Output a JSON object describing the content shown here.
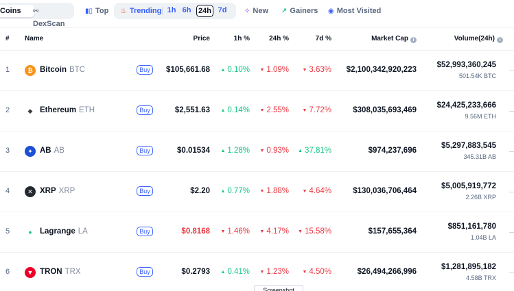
{
  "topbar": {
    "coins_label": "Coins",
    "dexscan_label": "DexScan",
    "top_label": "Top",
    "trending_label": "Trending",
    "timeframes": [
      "1h",
      "6h",
      "24h",
      "7d"
    ],
    "active_timeframe": "24h",
    "new_label": "New",
    "gainers_label": "Gainers",
    "most_visited_label": "Most Visited"
  },
  "table": {
    "headers": {
      "rank": "#",
      "name": "Name",
      "price": "Price",
      "h1": "1h %",
      "h24": "24h %",
      "d7": "7d %",
      "market_cap": "Market Cap",
      "volume": "Volume(24h)"
    },
    "buy_label": "Buy",
    "rows": [
      {
        "rank": "1",
        "name": "Bitcoin",
        "symbol": "BTC",
        "price": "$105,661.68",
        "h1": "0.10%",
        "h1_dir": "up",
        "h24": "1.09%",
        "h24_dir": "down",
        "d7": "3.63%",
        "d7_dir": "down",
        "market_cap": "$2,100,342,920,223",
        "volume": "$52,993,360,245",
        "volume_sub": "501.54K BTC",
        "logo_color": "#f7931a",
        "logo_glyph": "₿"
      },
      {
        "rank": "2",
        "name": "Ethereum",
        "symbol": "ETH",
        "price": "$2,551.63",
        "h1": "0.14%",
        "h1_dir": "up",
        "h24": "2.55%",
        "h24_dir": "down",
        "d7": "7.72%",
        "d7_dir": "down",
        "market_cap": "$308,035,693,469",
        "volume": "$24,425,233,666",
        "volume_sub": "9.56M ETH",
        "logo_color": "#ffffff",
        "logo_glyph": "◆"
      },
      {
        "rank": "3",
        "name": "AB",
        "symbol": "AB",
        "price": "$0.01534",
        "h1": "1.28%",
        "h1_dir": "up",
        "h24": "0.93%",
        "h24_dir": "down",
        "d7": "37.81%",
        "d7_dir": "up",
        "market_cap": "$974,237,696",
        "volume": "$5,297,883,545",
        "volume_sub": "345.31B AB",
        "logo_color": "#1a4fd6",
        "logo_glyph": "✦"
      },
      {
        "rank": "4",
        "name": "XRP",
        "symbol": "XRP",
        "price": "$2.20",
        "h1": "0.77%",
        "h1_dir": "up",
        "h24": "1.88%",
        "h24_dir": "down",
        "d7": "4.64%",
        "d7_dir": "down",
        "market_cap": "$130,036,706,464",
        "volume": "$5,005,919,772",
        "volume_sub": "2.26B XRP",
        "logo_color": "#23292f",
        "logo_glyph": "✕"
      },
      {
        "rank": "5",
        "name": "Lagrange",
        "symbol": "LA",
        "price": "$0.8168",
        "price_dir": "down",
        "h1": "1.46%",
        "h1_dir": "down",
        "h24": "4.17%",
        "h24_dir": "down",
        "d7": "15.58%",
        "d7_dir": "down",
        "market_cap": "$157,655,364",
        "volume": "$851,161,780",
        "volume_sub": "1.04B LA",
        "logo_color": "#ffffff",
        "logo_glyph": "●"
      },
      {
        "rank": "6",
        "name": "TRON",
        "symbol": "TRX",
        "price": "$0.2793",
        "h1": "0.41%",
        "h1_dir": "up",
        "h24": "1.23%",
        "h24_dir": "down",
        "d7": "4.50%",
        "d7_dir": "down",
        "market_cap": "$26,494,266,996",
        "volume": "$1,281,895,182",
        "volume_sub": "4.58B TRX",
        "logo_color": "#eb0029",
        "logo_glyph": "▼"
      }
    ]
  },
  "tooltip_label": "Screenshot"
}
